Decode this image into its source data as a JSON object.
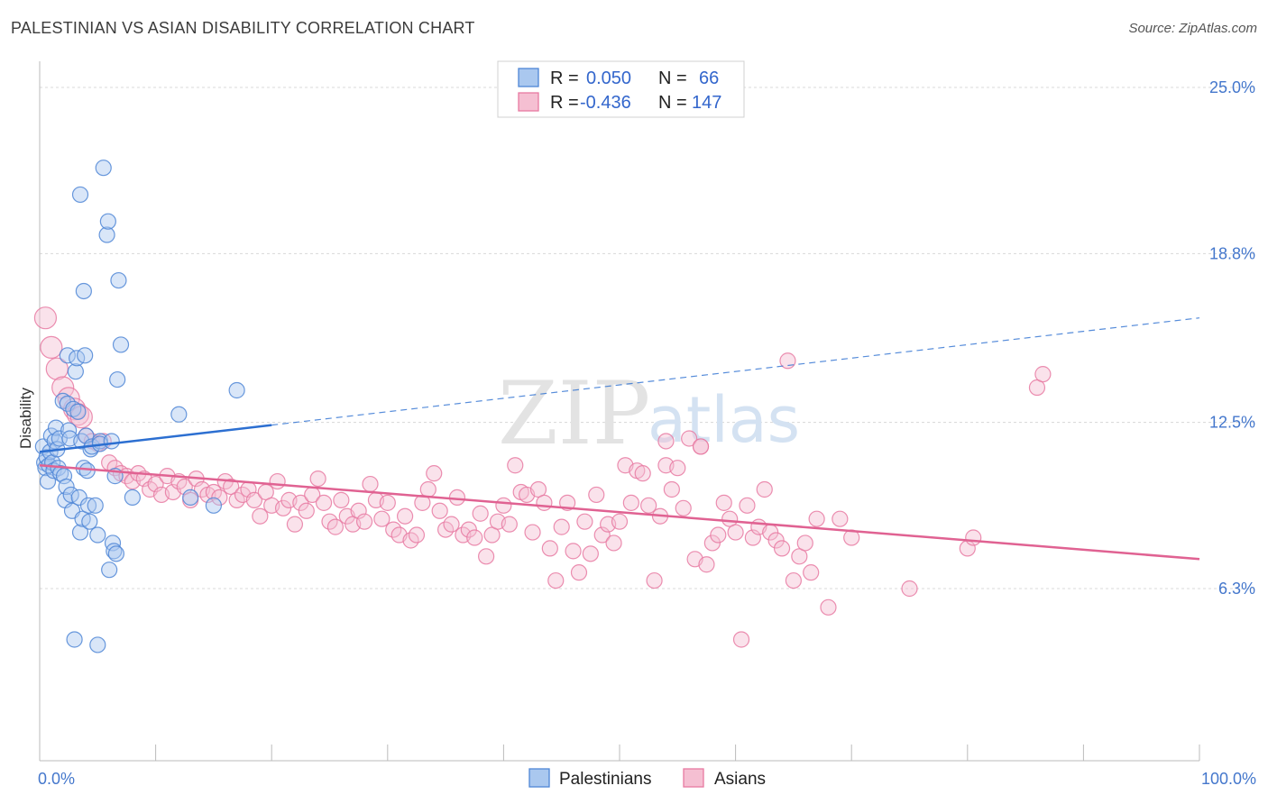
{
  "title": "PALESTINIAN VS ASIAN DISABILITY CORRELATION CHART",
  "source": "Source: ZipAtlas.com",
  "watermark": {
    "zip": "ZIP",
    "atlas": "atlas"
  },
  "colors": {
    "blue": "#4f86d6",
    "blue_fill": "#aac8ef",
    "blue_line": "#2c6fd1",
    "pink": "#e87aa2",
    "pink_fill": "#f5bfd2",
    "pink_line": "#e06292",
    "grid": "#d8d8d8",
    "tick_text": "#4477cc"
  },
  "legend": {
    "rows": [
      {
        "r_label": "R =",
        "r_value": "0.050",
        "n_label": "N =",
        "n_value": "66",
        "color": "blue"
      },
      {
        "r_label": "R =",
        "r_value": "-0.436",
        "n_label": "N =",
        "n_value": "147",
        "color": "pink"
      }
    ]
  },
  "chart_data": {
    "type": "scatter",
    "ylabel": "Disability",
    "xlim": [
      0,
      100
    ],
    "ylim": [
      0,
      26
    ],
    "y_ticks": [
      {
        "value": 6.3,
        "label": "6.3%"
      },
      {
        "value": 12.5,
        "label": "12.5%"
      },
      {
        "value": 18.8,
        "label": "18.8%"
      },
      {
        "value": 25.0,
        "label": "25.0%"
      }
    ],
    "x_tick_labels": [
      {
        "value": 0,
        "label": "0.0%"
      },
      {
        "value": 100,
        "label": "100.0%"
      }
    ],
    "x_minor_ticks": [
      0,
      10,
      20,
      30,
      40,
      50,
      60,
      70,
      80,
      90,
      100
    ],
    "grid": true,
    "legend_position": "bottom-center",
    "series": [
      {
        "name": "Palestinians",
        "color": "blue",
        "trend": {
          "x0": 0,
          "y0": 11.4,
          "x1": 20,
          "y1": 12.4,
          "dashed_to_x": 100,
          "dashed_to_y": 16.4
        },
        "points": [
          [
            0.3,
            11.6
          ],
          [
            0.4,
            11.0
          ],
          [
            0.5,
            10.8
          ],
          [
            0.6,
            11.2
          ],
          [
            0.7,
            10.3
          ],
          [
            0.8,
            10.9
          ],
          [
            0.9,
            11.4
          ],
          [
            1.0,
            12.0
          ],
          [
            1.1,
            11.0
          ],
          [
            1.2,
            10.7
          ],
          [
            1.3,
            11.8
          ],
          [
            1.4,
            12.3
          ],
          [
            1.5,
            11.5
          ],
          [
            1.6,
            10.8
          ],
          [
            1.7,
            11.9
          ],
          [
            1.8,
            10.6
          ],
          [
            2.0,
            13.3
          ],
          [
            2.1,
            10.5
          ],
          [
            2.2,
            9.6
          ],
          [
            2.3,
            10.1
          ],
          [
            2.4,
            13.2
          ],
          [
            2.4,
            15.0
          ],
          [
            2.5,
            12.2
          ],
          [
            2.6,
            11.9
          ],
          [
            2.7,
            9.8
          ],
          [
            2.8,
            9.2
          ],
          [
            2.9,
            13.0
          ],
          [
            3.0,
            4.4
          ],
          [
            3.1,
            14.4
          ],
          [
            3.2,
            14.9
          ],
          [
            3.3,
            12.9
          ],
          [
            3.4,
            9.7
          ],
          [
            3.5,
            8.4
          ],
          [
            3.6,
            11.8
          ],
          [
            3.7,
            8.9
          ],
          [
            3.8,
            10.8
          ],
          [
            3.9,
            15.0
          ],
          [
            4.0,
            12.0
          ],
          [
            4.1,
            10.7
          ],
          [
            4.2,
            9.4
          ],
          [
            4.3,
            8.8
          ],
          [
            4.4,
            11.5
          ],
          [
            3.5,
            21.0
          ],
          [
            3.8,
            17.4
          ],
          [
            4.5,
            11.6
          ],
          [
            4.8,
            9.4
          ],
          [
            5.0,
            8.3
          ],
          [
            5.2,
            11.8
          ],
          [
            5.5,
            22.0
          ],
          [
            5.0,
            4.2
          ],
          [
            5.2,
            11.7
          ],
          [
            5.8,
            19.5
          ],
          [
            5.9,
            20.0
          ],
          [
            6.0,
            7.0
          ],
          [
            6.2,
            11.8
          ],
          [
            6.3,
            8.0
          ],
          [
            6.4,
            7.7
          ],
          [
            6.5,
            10.5
          ],
          [
            6.6,
            7.6
          ],
          [
            6.7,
            14.1
          ],
          [
            6.8,
            17.8
          ],
          [
            7.0,
            15.4
          ],
          [
            8.0,
            9.7
          ],
          [
            12.0,
            12.8
          ],
          [
            13.0,
            9.7
          ],
          [
            15.0,
            9.4
          ],
          [
            17.0,
            13.7
          ]
        ]
      },
      {
        "name": "Asians",
        "color": "pink",
        "trend": {
          "x0": 0,
          "y0": 10.9,
          "x1": 100,
          "y1": 7.4
        },
        "points": [
          [
            0.5,
            16.4
          ],
          [
            1.0,
            15.3
          ],
          [
            1.5,
            14.5
          ],
          [
            2.0,
            13.8
          ],
          [
            2.5,
            13.4
          ],
          [
            3.0,
            13.0
          ],
          [
            3.3,
            12.8
          ],
          [
            3.6,
            12.7
          ],
          [
            4.0,
            12.0
          ],
          [
            4.5,
            11.8
          ],
          [
            5.0,
            11.7
          ],
          [
            5.5,
            11.8
          ],
          [
            6.0,
            11.0
          ],
          [
            6.5,
            10.8
          ],
          [
            7.0,
            10.6
          ],
          [
            7.5,
            10.5
          ],
          [
            8.0,
            10.3
          ],
          [
            8.5,
            10.6
          ],
          [
            9.0,
            10.4
          ],
          [
            9.5,
            10.0
          ],
          [
            10.0,
            10.2
          ],
          [
            10.5,
            9.8
          ],
          [
            11.0,
            10.5
          ],
          [
            11.5,
            9.9
          ],
          [
            12.0,
            10.3
          ],
          [
            12.5,
            10.1
          ],
          [
            13.0,
            9.6
          ],
          [
            13.5,
            10.4
          ],
          [
            14.0,
            10.0
          ],
          [
            14.5,
            9.8
          ],
          [
            15.0,
            9.9
          ],
          [
            15.5,
            9.7
          ],
          [
            16.0,
            10.3
          ],
          [
            16.5,
            10.1
          ],
          [
            17.0,
            9.6
          ],
          [
            17.5,
            9.8
          ],
          [
            18.0,
            10.0
          ],
          [
            18.5,
            9.6
          ],
          [
            19.0,
            9.0
          ],
          [
            19.5,
            9.9
          ],
          [
            20.0,
            9.4
          ],
          [
            20.5,
            10.3
          ],
          [
            21.0,
            9.3
          ],
          [
            21.5,
            9.6
          ],
          [
            22.0,
            8.7
          ],
          [
            22.5,
            9.5
          ],
          [
            23.0,
            9.2
          ],
          [
            23.5,
            9.8
          ],
          [
            24.0,
            10.4
          ],
          [
            24.5,
            9.5
          ],
          [
            25.0,
            8.8
          ],
          [
            25.5,
            8.6
          ],
          [
            26.0,
            9.6
          ],
          [
            26.5,
            9.0
          ],
          [
            27.0,
            8.7
          ],
          [
            27.5,
            9.2
          ],
          [
            28.0,
            8.8
          ],
          [
            28.5,
            10.2
          ],
          [
            29.0,
            9.6
          ],
          [
            29.5,
            8.9
          ],
          [
            30.0,
            9.5
          ],
          [
            30.5,
            8.5
          ],
          [
            31.0,
            8.3
          ],
          [
            31.5,
            9.0
          ],
          [
            32.0,
            8.1
          ],
          [
            32.5,
            8.3
          ],
          [
            33.0,
            9.5
          ],
          [
            33.5,
            10.0
          ],
          [
            34.0,
            10.6
          ],
          [
            34.5,
            9.2
          ],
          [
            35.0,
            8.5
          ],
          [
            35.5,
            8.7
          ],
          [
            36.0,
            9.7
          ],
          [
            36.5,
            8.3
          ],
          [
            37.0,
            8.5
          ],
          [
            37.5,
            8.2
          ],
          [
            38.0,
            9.1
          ],
          [
            38.5,
            7.5
          ],
          [
            39.0,
            8.3
          ],
          [
            39.5,
            8.8
          ],
          [
            40.0,
            9.4
          ],
          [
            40.5,
            8.7
          ],
          [
            41.0,
            10.9
          ],
          [
            41.5,
            9.9
          ],
          [
            42.0,
            9.8
          ],
          [
            42.5,
            8.4
          ],
          [
            43.0,
            10.0
          ],
          [
            43.5,
            9.5
          ],
          [
            44.0,
            7.8
          ],
          [
            44.5,
            6.6
          ],
          [
            45.0,
            8.6
          ],
          [
            45.5,
            9.5
          ],
          [
            46.0,
            7.7
          ],
          [
            46.5,
            6.9
          ],
          [
            47.0,
            8.8
          ],
          [
            47.5,
            7.6
          ],
          [
            48.0,
            9.8
          ],
          [
            48.5,
            8.3
          ],
          [
            49.0,
            8.7
          ],
          [
            49.5,
            8.0
          ],
          [
            50.0,
            8.8
          ],
          [
            50.5,
            10.9
          ],
          [
            51.0,
            9.5
          ],
          [
            51.5,
            10.7
          ],
          [
            52.0,
            10.6
          ],
          [
            52.5,
            9.4
          ],
          [
            53.0,
            6.6
          ],
          [
            53.5,
            9.0
          ],
          [
            54.0,
            10.9
          ],
          [
            54.5,
            10.0
          ],
          [
            55.0,
            10.8
          ],
          [
            55.5,
            9.3
          ],
          [
            56.0,
            11.9
          ],
          [
            56.5,
            7.4
          ],
          [
            57.0,
            11.6
          ],
          [
            57.5,
            7.2
          ],
          [
            58.0,
            8.0
          ],
          [
            58.5,
            8.3
          ],
          [
            59.0,
            9.5
          ],
          [
            59.5,
            8.9
          ],
          [
            60.0,
            8.4
          ],
          [
            60.5,
            4.4
          ],
          [
            61.0,
            9.4
          ],
          [
            61.5,
            8.2
          ],
          [
            62.0,
            8.6
          ],
          [
            62.5,
            10.0
          ],
          [
            63.0,
            8.4
          ],
          [
            63.5,
            8.1
          ],
          [
            64.0,
            7.8
          ],
          [
            64.5,
            14.8
          ],
          [
            65.0,
            6.6
          ],
          [
            65.5,
            7.5
          ],
          [
            66.0,
            8.0
          ],
          [
            66.5,
            6.9
          ],
          [
            67.0,
            8.9
          ],
          [
            68.0,
            5.6
          ],
          [
            69.0,
            8.9
          ],
          [
            70.0,
            8.2
          ],
          [
            75.0,
            6.3
          ],
          [
            80.0,
            7.8
          ],
          [
            54.0,
            11.8
          ],
          [
            57.0,
            11.6
          ],
          [
            86.0,
            13.8
          ],
          [
            86.5,
            14.3
          ],
          [
            80.5,
            8.2
          ]
        ]
      }
    ]
  }
}
